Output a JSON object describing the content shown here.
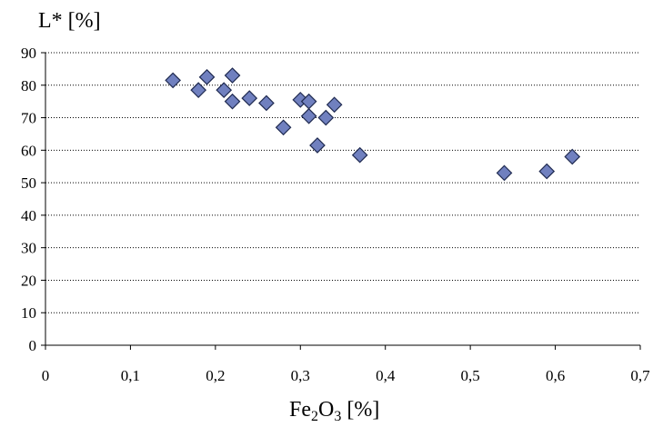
{
  "chart_data": {
    "type": "scatter",
    "title": "",
    "ylabel": "L* [%]",
    "xlabel": {
      "prefix": "Fe",
      "sub1": "2",
      "mid": "O",
      "sub2": "3",
      "suffix": " [%]"
    },
    "xlim": [
      0,
      0.7
    ],
    "ylim": [
      0,
      90
    ],
    "xticks": [
      0,
      0.1,
      0.2,
      0.3,
      0.4,
      0.5,
      0.6,
      0.7
    ],
    "xtick_labels": [
      "0",
      "0,1",
      "0,2",
      "0,3",
      "0,4",
      "0,5",
      "0,6",
      "0,7"
    ],
    "yticks": [
      0,
      10,
      20,
      30,
      40,
      50,
      60,
      70,
      80,
      90
    ],
    "ytick_labels": [
      "0",
      "10",
      "20",
      "30",
      "40",
      "50",
      "60",
      "70",
      "80",
      "90"
    ],
    "grid": "horizontal dotted",
    "marker": "diamond",
    "marker_color": "#7080BF",
    "marker_edge": "#1F2A50",
    "points": [
      {
        "x": 0.15,
        "y": 81.5
      },
      {
        "x": 0.18,
        "y": 78.5
      },
      {
        "x": 0.19,
        "y": 82.5
      },
      {
        "x": 0.21,
        "y": 78.5
      },
      {
        "x": 0.22,
        "y": 83
      },
      {
        "x": 0.22,
        "y": 75
      },
      {
        "x": 0.24,
        "y": 76
      },
      {
        "x": 0.26,
        "y": 74.5
      },
      {
        "x": 0.28,
        "y": 67
      },
      {
        "x": 0.3,
        "y": 75.5
      },
      {
        "x": 0.31,
        "y": 75
      },
      {
        "x": 0.31,
        "y": 70.5
      },
      {
        "x": 0.32,
        "y": 61.5
      },
      {
        "x": 0.33,
        "y": 70
      },
      {
        "x": 0.34,
        "y": 74
      },
      {
        "x": 0.37,
        "y": 58.5
      },
      {
        "x": 0.54,
        "y": 53
      },
      {
        "x": 0.59,
        "y": 53.5
      },
      {
        "x": 0.62,
        "y": 58
      }
    ]
  }
}
